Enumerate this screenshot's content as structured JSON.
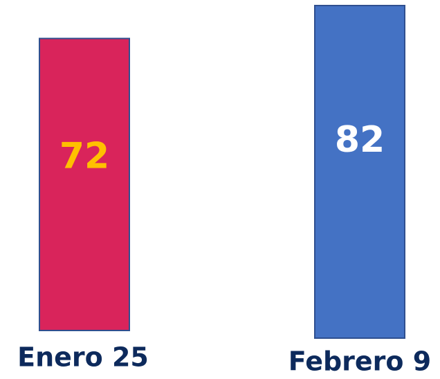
{
  "chart_data": {
    "type": "bar",
    "categories": [
      "Enero 25",
      "Febrero 9"
    ],
    "values": [
      72,
      82
    ],
    "colors": [
      "#d9245b",
      "#4472c4"
    ],
    "label_colors": [
      "#ffc000",
      "#ffffff"
    ]
  }
}
